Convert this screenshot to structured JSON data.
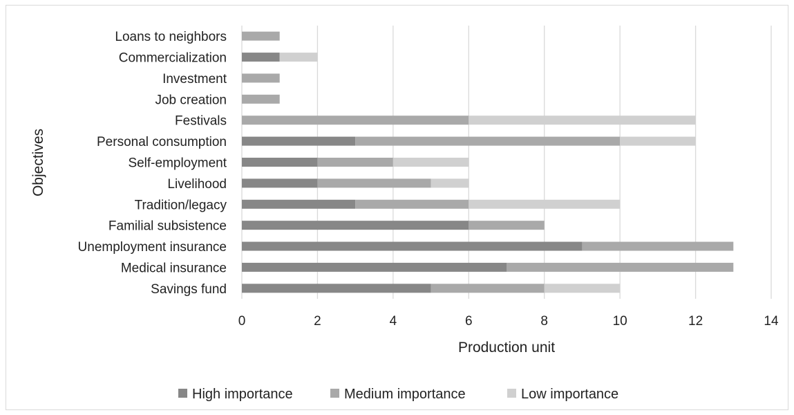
{
  "chart_data": {
    "type": "bar",
    "orientation": "horizontal",
    "stacked": true,
    "categories": [
      "Loans to neighbors",
      "Commercialization",
      "Investment",
      "Job creation",
      "Festivals",
      "Personal consumption",
      "Self-employment ",
      "Livelihood",
      "Tradition/legacy ",
      "Familial subsistence",
      "Unemployment insurance ",
      "Medical insurance ",
      "Savings fund"
    ],
    "series": [
      {
        "name": "High importance",
        "color": "#878787",
        "values": [
          0,
          1,
          0,
          0,
          0,
          3,
          2,
          2,
          3,
          6,
          9,
          7,
          5
        ]
      },
      {
        "name": "Medium importance",
        "color": "#a9a9a9",
        "values": [
          1,
          0,
          1,
          1,
          6,
          7,
          2,
          3,
          3,
          2,
          4,
          6,
          3
        ]
      },
      {
        "name": "Low importance",
        "color": "#d0d0d0",
        "values": [
          0,
          1,
          0,
          0,
          6,
          2,
          2,
          1,
          4,
          0,
          0,
          0,
          2
        ]
      }
    ],
    "xlabel": "Production unit",
    "ylabel": "Objectives",
    "xlim": [
      0,
      14
    ],
    "xticks": [
      "0",
      "2",
      "4",
      "6",
      "8",
      "10",
      "12",
      "14"
    ],
    "grid": "vertical",
    "legend_position": "bottom"
  }
}
